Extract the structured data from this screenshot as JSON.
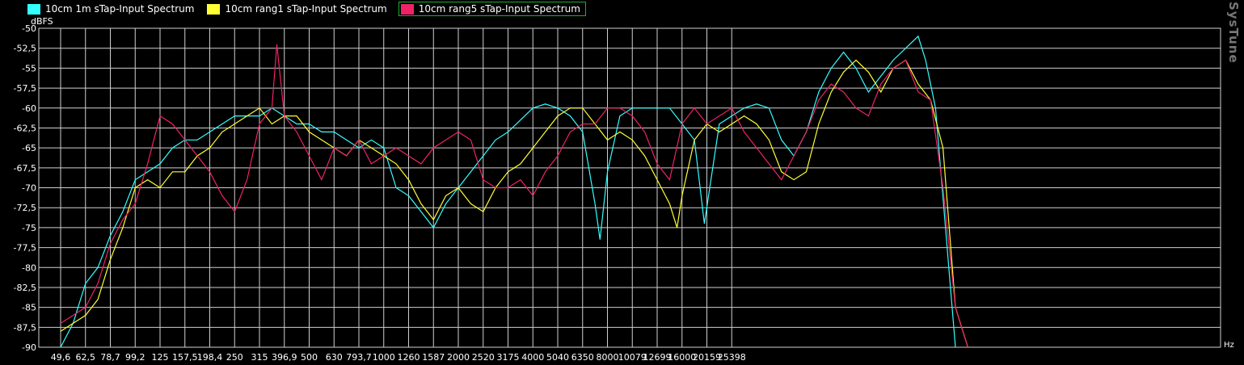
{
  "brand": "SysTune",
  "legend": [
    {
      "name": "10cm 1m sTap-Input Spectrum",
      "color": "#33ffff",
      "selected": false
    },
    {
      "name": "10cm rang1 sTap-Input Spectrum",
      "color": "#ffff33",
      "selected": false
    },
    {
      "name": "10cm rang5 sTap-Input Spectrum",
      "color": "#ee2266",
      "selected": true
    }
  ],
  "chart_data": {
    "type": "line",
    "ylabel": "dBFS",
    "xlabel": "Hz",
    "ylim": [
      -90,
      -50
    ],
    "yticks": [
      "-50",
      "-52,5",
      "-55",
      "-57,5",
      "-60",
      "-62,5",
      "-65",
      "-67,5",
      "-70",
      "-72,5",
      "-75",
      "-77,5",
      "-80",
      "-82,5",
      "-85",
      "-87,5",
      "-90"
    ],
    "xticks": [
      "49,6",
      "62,5",
      "78,7",
      "99,2",
      "125",
      "157,5",
      "198,4",
      "250",
      "315",
      "396,9",
      "500",
      "630",
      "793,7",
      "1000",
      "1260",
      "1587",
      "2000",
      "2520",
      "3175",
      "4000",
      "5040",
      "6350",
      "8000",
      "10079",
      "12699",
      "16000",
      "20159",
      "25398"
    ],
    "grid": true,
    "series": [
      {
        "name": "10cm 1m sTap-Input Spectrum",
        "color": "#33ffff",
        "points": [
          [
            0,
            -90
          ],
          [
            0.5,
            -87
          ],
          [
            1,
            -82
          ],
          [
            1.5,
            -80
          ],
          [
            2,
            -76
          ],
          [
            2.5,
            -73
          ],
          [
            3,
            -69
          ],
          [
            3.5,
            -68
          ],
          [
            4,
            -67
          ],
          [
            4.5,
            -65
          ],
          [
            5,
            -64
          ],
          [
            5.5,
            -64
          ],
          [
            6,
            -63
          ],
          [
            6.5,
            -62
          ],
          [
            7,
            -61
          ],
          [
            7.5,
            -61
          ],
          [
            8,
            -61
          ],
          [
            8.5,
            -60
          ],
          [
            9,
            -61
          ],
          [
            9.5,
            -62
          ],
          [
            10,
            -62
          ],
          [
            10.5,
            -63
          ],
          [
            11,
            -63
          ],
          [
            11.5,
            -64
          ],
          [
            12,
            -65
          ],
          [
            12.5,
            -64
          ],
          [
            13,
            -65
          ],
          [
            13.5,
            -70
          ],
          [
            14,
            -71
          ],
          [
            14.5,
            -73
          ],
          [
            15,
            -75
          ],
          [
            15.5,
            -72
          ],
          [
            16,
            -70
          ],
          [
            16.5,
            -68
          ],
          [
            17,
            -66
          ],
          [
            17.5,
            -64
          ],
          [
            18,
            -63
          ],
          [
            18.5,
            -61.5
          ],
          [
            19,
            -60
          ],
          [
            19.5,
            -59.5
          ],
          [
            20,
            -60
          ],
          [
            20.5,
            -61
          ],
          [
            21,
            -63
          ],
          [
            21.5,
            -72
          ],
          [
            21.7,
            -76.5
          ],
          [
            22,
            -68
          ],
          [
            22.5,
            -61
          ],
          [
            23,
            -60
          ],
          [
            23.5,
            -60
          ],
          [
            24,
            -60
          ],
          [
            24.5,
            -60
          ],
          [
            25,
            -62
          ],
          [
            25.5,
            -64
          ],
          [
            25.9,
            -74.5
          ],
          [
            26.5,
            -62
          ],
          [
            27,
            -61
          ],
          [
            27.5,
            -60
          ],
          [
            28,
            -59.5
          ],
          [
            28.5,
            -60
          ],
          [
            29,
            -64
          ],
          [
            29.5,
            -66
          ],
          [
            30,
            -63
          ],
          [
            30.5,
            -58
          ],
          [
            31,
            -55
          ],
          [
            31.5,
            -53
          ],
          [
            32,
            -55
          ],
          [
            32.5,
            -58
          ],
          [
            33,
            -56
          ],
          [
            33.5,
            -54
          ],
          [
            34,
            -52.5
          ],
          [
            34.5,
            -51
          ],
          [
            34.8,
            -54
          ],
          [
            35.2,
            -60
          ],
          [
            35.6,
            -75
          ],
          [
            36,
            -90
          ]
        ]
      },
      {
        "name": "10cm rang1 sTap-Input Spectrum",
        "color": "#ffff33",
        "points": [
          [
            0,
            -88
          ],
          [
            0.5,
            -87
          ],
          [
            1,
            -86
          ],
          [
            1.5,
            -84
          ],
          [
            2,
            -79
          ],
          [
            2.5,
            -75
          ],
          [
            3,
            -70
          ],
          [
            3.5,
            -69
          ],
          [
            4,
            -70
          ],
          [
            4.5,
            -68
          ],
          [
            5,
            -68
          ],
          [
            5.5,
            -66
          ],
          [
            6,
            -65
          ],
          [
            6.5,
            -63
          ],
          [
            7,
            -62
          ],
          [
            7.5,
            -61
          ],
          [
            8,
            -60
          ],
          [
            8.5,
            -62
          ],
          [
            9,
            -61
          ],
          [
            9.5,
            -61
          ],
          [
            10,
            -63
          ],
          [
            10.5,
            -64
          ],
          [
            11,
            -65
          ],
          [
            11.5,
            -66
          ],
          [
            12,
            -64
          ],
          [
            12.5,
            -65
          ],
          [
            13,
            -66
          ],
          [
            13.5,
            -67
          ],
          [
            14,
            -69
          ],
          [
            14.5,
            -72
          ],
          [
            15,
            -74
          ],
          [
            15.5,
            -71
          ],
          [
            16,
            -70
          ],
          [
            16.5,
            -72
          ],
          [
            17,
            -73
          ],
          [
            17.5,
            -70
          ],
          [
            18,
            -68
          ],
          [
            18.5,
            -67
          ],
          [
            19,
            -65
          ],
          [
            19.5,
            -63
          ],
          [
            20,
            -61
          ],
          [
            20.5,
            -60
          ],
          [
            21,
            -60
          ],
          [
            21.5,
            -62
          ],
          [
            22,
            -64
          ],
          [
            22.5,
            -63
          ],
          [
            23,
            -64
          ],
          [
            23.5,
            -66
          ],
          [
            24,
            -69
          ],
          [
            24.5,
            -72
          ],
          [
            24.8,
            -75
          ],
          [
            25,
            -71
          ],
          [
            25.5,
            -64
          ],
          [
            26,
            -62
          ],
          [
            26.5,
            -63
          ],
          [
            27,
            -62
          ],
          [
            27.5,
            -61
          ],
          [
            28,
            -62
          ],
          [
            28.5,
            -64
          ],
          [
            29,
            -68
          ],
          [
            29.5,
            -69
          ],
          [
            30,
            -68
          ],
          [
            30.5,
            -62
          ],
          [
            31,
            -58
          ],
          [
            31.5,
            -55.5
          ],
          [
            32,
            -54
          ],
          [
            32.5,
            -55.5
          ],
          [
            33,
            -58
          ],
          [
            33.5,
            -55
          ],
          [
            34,
            -54
          ],
          [
            34.5,
            -57
          ],
          [
            35,
            -59
          ],
          [
            35.5,
            -65
          ],
          [
            36,
            -85
          ],
          [
            36.5,
            -90
          ]
        ]
      },
      {
        "name": "10cm rang5 sTap-Input Spectrum",
        "color": "#ee2266",
        "points": [
          [
            0,
            -87
          ],
          [
            0.5,
            -86
          ],
          [
            1,
            -85
          ],
          [
            1.5,
            -82
          ],
          [
            2,
            -77
          ],
          [
            2.5,
            -74
          ],
          [
            3,
            -72
          ],
          [
            3.5,
            -67
          ],
          [
            4,
            -61
          ],
          [
            4.5,
            -62
          ],
          [
            5,
            -64
          ],
          [
            5.5,
            -66
          ],
          [
            6,
            -68
          ],
          [
            6.5,
            -71
          ],
          [
            7,
            -73
          ],
          [
            7.5,
            -69
          ],
          [
            8,
            -62
          ],
          [
            8.5,
            -60
          ],
          [
            8.7,
            -52
          ],
          [
            9,
            -61
          ],
          [
            9.5,
            -63
          ],
          [
            10,
            -66
          ],
          [
            10.5,
            -69
          ],
          [
            11,
            -65
          ],
          [
            11.5,
            -66
          ],
          [
            12,
            -64
          ],
          [
            12.5,
            -67
          ],
          [
            13,
            -66
          ],
          [
            13.5,
            -65
          ],
          [
            14,
            -66
          ],
          [
            14.5,
            -67
          ],
          [
            15,
            -65
          ],
          [
            15.5,
            -64
          ],
          [
            16,
            -63
          ],
          [
            16.5,
            -64
          ],
          [
            17,
            -69
          ],
          [
            17.5,
            -70
          ],
          [
            18,
            -70
          ],
          [
            18.5,
            -69
          ],
          [
            19,
            -71
          ],
          [
            19.5,
            -68
          ],
          [
            20,
            -66
          ],
          [
            20.5,
            -63
          ],
          [
            21,
            -62
          ],
          [
            21.5,
            -62
          ],
          [
            22,
            -60
          ],
          [
            22.5,
            -60
          ],
          [
            23,
            -61
          ],
          [
            23.5,
            -63
          ],
          [
            24,
            -67
          ],
          [
            24.5,
            -69
          ],
          [
            25,
            -62
          ],
          [
            25.5,
            -60
          ],
          [
            26,
            -62
          ],
          [
            26.5,
            -61
          ],
          [
            27,
            -60
          ],
          [
            27.5,
            -63
          ],
          [
            28,
            -65
          ],
          [
            28.5,
            -67
          ],
          [
            29,
            -69
          ],
          [
            29.5,
            -66
          ],
          [
            30,
            -63
          ],
          [
            30.5,
            -59
          ],
          [
            31,
            -57
          ],
          [
            31.5,
            -58
          ],
          [
            32,
            -60
          ],
          [
            32.5,
            -61
          ],
          [
            33,
            -57
          ],
          [
            33.5,
            -55
          ],
          [
            34,
            -54
          ],
          [
            34.5,
            -58
          ],
          [
            35,
            -59
          ],
          [
            35.5,
            -70
          ],
          [
            36,
            -85
          ],
          [
            36.5,
            -90
          ]
        ]
      }
    ]
  }
}
